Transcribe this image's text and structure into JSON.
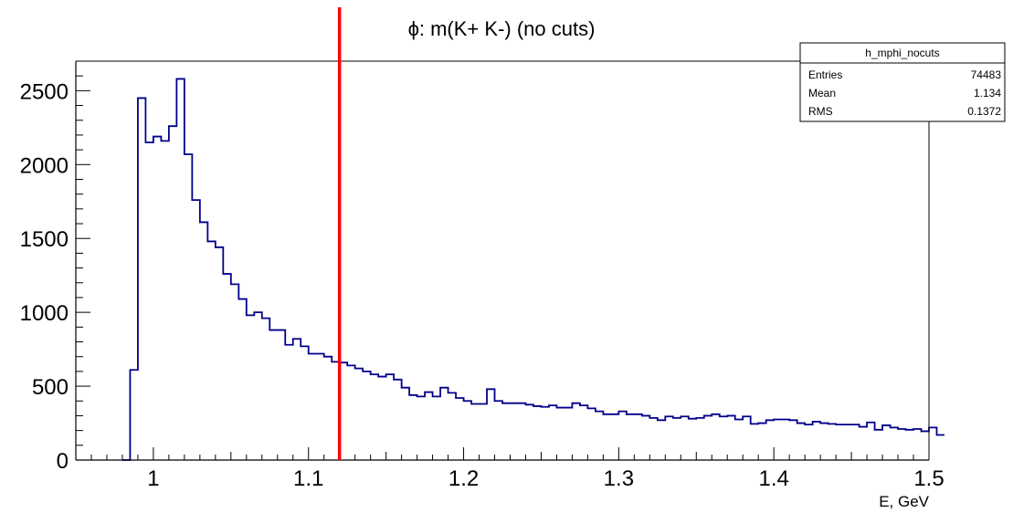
{
  "chart_data": {
    "type": "histogram",
    "title": "ϕ: m(K+ K-) (no cuts)",
    "xlabel": "E, GeV",
    "ylabel": "",
    "xlim": [
      0.95,
      1.5
    ],
    "ylim": [
      0,
      2700
    ],
    "x_ticks": [
      1.0,
      1.1,
      1.2,
      1.3,
      1.4,
      1.5
    ],
    "x_tick_labels": [
      "1",
      "1.1",
      "1.2",
      "1.3",
      "1.4",
      "1.5"
    ],
    "y_ticks": [
      0,
      500,
      1000,
      1500,
      2000,
      2500
    ],
    "y_tick_labels": [
      "0",
      "500",
      "1000",
      "1500",
      "2000",
      "2500"
    ],
    "grid": false,
    "series": [
      {
        "color": "#00008b",
        "bin_start": 0.98,
        "bin_width": 0.005,
        "values": [
          0,
          610,
          2450,
          2150,
          2190,
          2160,
          2260,
          2580,
          2070,
          1760,
          1610,
          1480,
          1440,
          1260,
          1190,
          1090,
          980,
          1000,
          960,
          880,
          880,
          780,
          820,
          770,
          720,
          720,
          700,
          665,
          660,
          640,
          620,
          600,
          580,
          565,
          580,
          545,
          490,
          440,
          430,
          460,
          430,
          490,
          455,
          420,
          400,
          380,
          380,
          480,
          400,
          385,
          385,
          385,
          375,
          365,
          360,
          370,
          355,
          355,
          385,
          370,
          350,
          330,
          310,
          310,
          330,
          310,
          310,
          300,
          285,
          270,
          295,
          285,
          295,
          280,
          285,
          300,
          310,
          295,
          300,
          275,
          295,
          245,
          250,
          270,
          275,
          275,
          270,
          250,
          240,
          260,
          250,
          245,
          240,
          240,
          240,
          225,
          255,
          205,
          235,
          220,
          210,
          205,
          210,
          195,
          220,
          170
        ]
      }
    ],
    "vertical_line": {
      "x": 1.12,
      "color": "#ff0000"
    },
    "stats_box": {
      "name": "h_mphi_nocuts",
      "rows": [
        {
          "label": "Entries",
          "value": "74483"
        },
        {
          "label": "Mean",
          "value": "1.134"
        },
        {
          "label": "RMS",
          "value": "0.1372"
        }
      ]
    }
  }
}
